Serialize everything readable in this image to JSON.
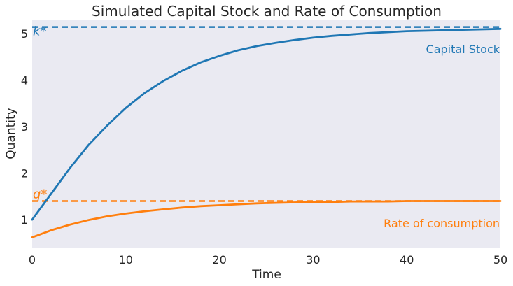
{
  "chart_data": {
    "type": "line",
    "title": "Simulated Capital Stock and Rate of Consumption",
    "xlabel": "Time",
    "ylabel": "Quantity",
    "xlim": [
      0,
      50
    ],
    "ylim": [
      0.4,
      5.3
    ],
    "x_ticks": [
      "0",
      "10",
      "20",
      "30",
      "40",
      "50"
    ],
    "y_ticks": [
      "1",
      "2",
      "3",
      "4",
      "5"
    ],
    "grid": false,
    "background": "#eaeaf2",
    "series": [
      {
        "name": "Capital Stock",
        "color": "#1f77b4",
        "x": [
          0,
          2,
          4,
          6,
          8,
          10,
          12,
          14,
          16,
          18,
          20,
          22,
          24,
          26,
          28,
          30,
          32,
          34,
          36,
          38,
          40,
          42,
          44,
          46,
          48,
          50
        ],
        "y": [
          1.0,
          1.55,
          2.1,
          2.6,
          3.02,
          3.4,
          3.72,
          3.98,
          4.2,
          4.38,
          4.52,
          4.64,
          4.73,
          4.8,
          4.86,
          4.91,
          4.95,
          4.98,
          5.01,
          5.03,
          5.05,
          5.06,
          5.07,
          5.08,
          5.09,
          5.1
        ]
      },
      {
        "name": "Rate of consumption",
        "color": "#ff7f0e",
        "x": [
          0,
          2,
          4,
          6,
          8,
          10,
          12,
          14,
          16,
          18,
          20,
          22,
          24,
          26,
          28,
          30,
          32,
          34,
          36,
          38,
          40,
          42,
          44,
          46,
          48,
          50
        ],
        "y": [
          0.62,
          0.77,
          0.89,
          0.99,
          1.07,
          1.13,
          1.18,
          1.22,
          1.26,
          1.29,
          1.31,
          1.33,
          1.35,
          1.36,
          1.37,
          1.38,
          1.38,
          1.39,
          1.39,
          1.39,
          1.4,
          1.4,
          1.4,
          1.4,
          1.4,
          1.4
        ]
      }
    ],
    "reference_lines": [
      {
        "label": "k*",
        "value": 5.14,
        "color": "#1f77b4",
        "style": "dashed"
      },
      {
        "label": "q*",
        "value": 1.4,
        "color": "#ff7f0e",
        "style": "dashed"
      }
    ],
    "annotations": [
      {
        "text": "Capital Stock",
        "color": "#1f77b4"
      },
      {
        "text": "Rate of consumption",
        "color": "#ff7f0e"
      }
    ]
  }
}
